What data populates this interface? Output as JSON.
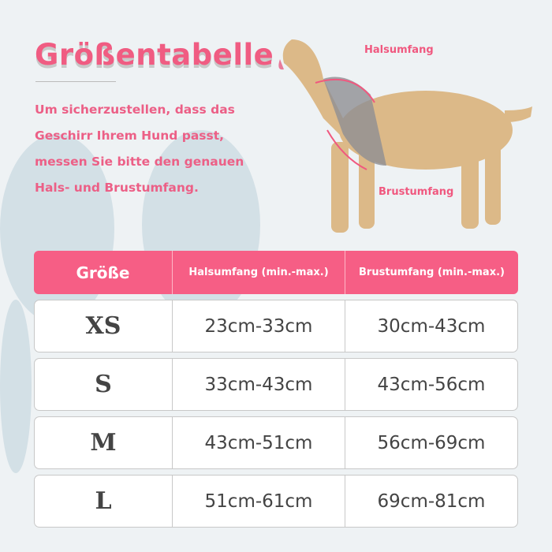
{
  "title": "Größentabelle",
  "intro": "Um sicherzustellen, dass das Geschirr Ihrem Hund passt, messen Sie bitte den genauen Hals- und Brustumfang.",
  "labels": {
    "neck": "Halsumfang",
    "chest": "Brustumfang"
  },
  "colors": {
    "accent": "#f65e85",
    "text": "#444444",
    "paw": "#d3e0e6"
  },
  "table": {
    "headers": [
      "Größe",
      "Halsumfang (min.-max.)",
      "Brustumfang (min.-max.)"
    ],
    "rows": [
      [
        "XS",
        "23cm-33cm",
        "30cm-43cm"
      ],
      [
        "S",
        "33cm-43cm",
        "43cm-56cm"
      ],
      [
        "M",
        "43cm-51cm",
        "56cm-69cm"
      ],
      [
        "L",
        "51cm-61cm",
        "69cm-81cm"
      ]
    ]
  }
}
